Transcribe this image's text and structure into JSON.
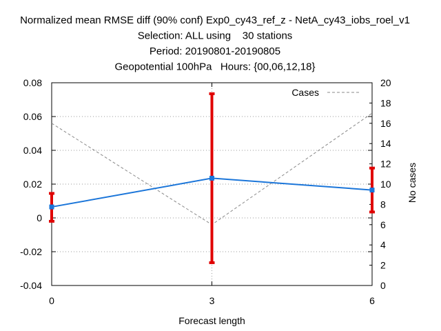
{
  "chart_data": {
    "type": "line",
    "title_lines": [
      "Normalized mean RMSE diff (90% conf) Exp0_cy43_ref_z - NetA_cy43_iobs_roel_v1",
      "Selection: ALL using    30 stations",
      "Period: 20190801-20190805",
      "Geopotential 100hPa   Hours: {00,06,12,18}"
    ],
    "xlabel": "Forecast length",
    "ylabel": "",
    "y2label": "No cases",
    "x_ticks": [
      0,
      3,
      6
    ],
    "xlim": [
      0,
      6
    ],
    "ylim": [
      -0.04,
      0.08
    ],
    "y_ticks": [
      -0.04,
      -0.02,
      0,
      0.02,
      0.04,
      0.06,
      0.08
    ],
    "y_tick_labels": [
      "-0.04",
      "-0.02",
      "0",
      "0.02",
      "0.04",
      "0.06",
      "0.08"
    ],
    "y2lim": [
      0,
      20
    ],
    "y2_ticks": [
      0,
      2,
      4,
      6,
      8,
      10,
      12,
      14,
      16,
      18,
      20
    ],
    "grid": true,
    "legend_position": "top-right",
    "series": [
      {
        "x": [
          0,
          3,
          6
        ],
        "values": [
          0.0065,
          0.0235,
          0.0165
        ],
        "error_low": [
          -0.002,
          -0.0265,
          0.0035
        ],
        "error_high": [
          0.0145,
          0.0735,
          0.0295
        ],
        "color": "#1a75d9",
        "error_color": "#e00000"
      },
      {
        "name": "Cases",
        "axis": "right",
        "x": [
          0,
          3,
          6
        ],
        "values": [
          16,
          6,
          17
        ],
        "color": "#888888",
        "dashed": true
      }
    ]
  }
}
